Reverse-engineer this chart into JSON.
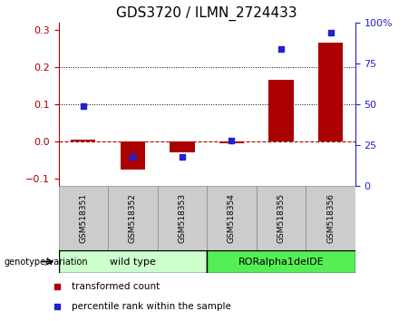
{
  "title": "GDS3720 / ILMN_2724433",
  "categories": [
    "GSM518351",
    "GSM518352",
    "GSM518353",
    "GSM518354",
    "GSM518355",
    "GSM518356"
  ],
  "bar_values": [
    0.005,
    -0.075,
    -0.03,
    -0.005,
    0.165,
    0.265
  ],
  "bar_color": "#aa0000",
  "scatter_color": "#2222cc",
  "scatter_right_values": [
    49,
    18,
    18,
    28,
    84,
    94
  ],
  "ylim_left": [
    -0.12,
    0.32
  ],
  "ylim_right": [
    0,
    100
  ],
  "yticks_left": [
    -0.1,
    0.0,
    0.1,
    0.2,
    0.3
  ],
  "yticks_right": [
    0,
    25,
    50,
    75,
    100
  ],
  "right_ytick_labels": [
    "0",
    "25",
    "50",
    "75",
    "100%"
  ],
  "hline_y": 0.0,
  "dotted_lines": [
    0.1,
    0.2
  ],
  "group1_label": "wild type",
  "group2_label": "RORalpha1delDE",
  "group1_color": "#ccffcc",
  "group2_color": "#55ee55",
  "group_header": "genotype/variation",
  "legend_bar_label": "transformed count",
  "legend_scatter_label": "percentile rank within the sample",
  "bar_width": 0.5,
  "sample_box_color": "#cccccc",
  "title_fontsize": 11,
  "tick_fontsize": 8,
  "label_fontsize": 8
}
